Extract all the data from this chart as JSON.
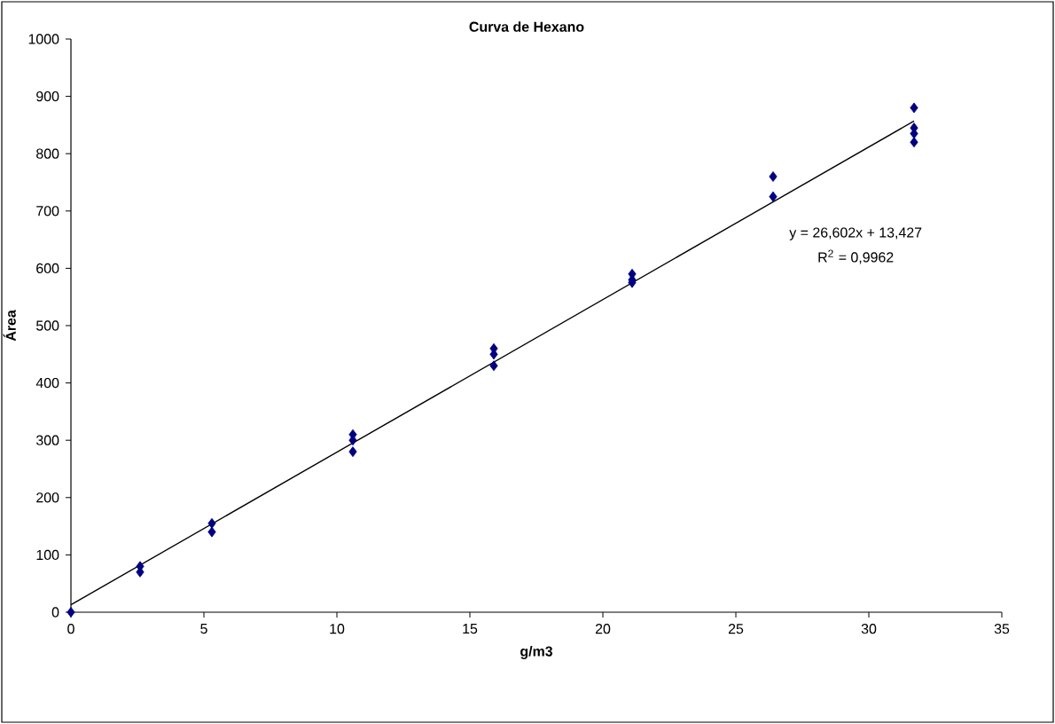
{
  "chart_data": {
    "type": "scatter",
    "title": "Curva de Hexano",
    "xlabel": "g/m3",
    "ylabel": "Área",
    "xlim": [
      0,
      35
    ],
    "xticks": [
      0,
      5,
      10,
      15,
      20,
      25,
      30,
      35
    ],
    "ylim": [
      0,
      1000
    ],
    "yticks": [
      0,
      100,
      200,
      300,
      400,
      500,
      600,
      700,
      800,
      900,
      1000
    ],
    "marker": "diamond",
    "series": [
      {
        "color": "#000080",
        "x": [
          0,
          2.6,
          2.6,
          5.3,
          5.3,
          10.6,
          10.6,
          10.6,
          15.9,
          15.9,
          15.9,
          21.1,
          21.1,
          21.1,
          26.4,
          26.4,
          31.7,
          31.7,
          31.7,
          31.7
        ],
        "values": [
          0,
          70,
          80,
          140,
          155,
          280,
          300,
          310,
          430,
          450,
          460,
          575,
          580,
          590,
          725,
          760,
          820,
          835,
          845,
          880
        ]
      },
      {
        "type": "line",
        "color": "#000000",
        "marker": "none",
        "x": [
          0,
          31.7
        ],
        "values": [
          13,
          857
        ]
      }
    ],
    "annotations": [
      "y = 26,602x + 13,427",
      "R$^{2}$ = 0,9962"
    ]
  }
}
